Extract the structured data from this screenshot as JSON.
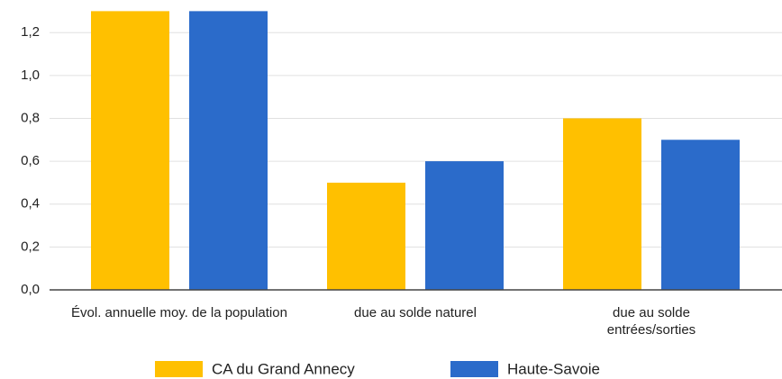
{
  "chart_data": {
    "type": "bar",
    "categories": [
      "Évol. annuelle moy. de la population",
      "due au solde naturel",
      "due au solde entrées/sorties"
    ],
    "series": [
      {
        "name": "CA du Grand Annecy",
        "color": "#ffc000",
        "values": [
          1.3,
          0.5,
          0.8
        ]
      },
      {
        "name": "Haute-Savoie",
        "color": "#2b6bca",
        "values": [
          1.3,
          0.6,
          0.7
        ]
      }
    ],
    "ylim": [
      0,
      1.31
    ],
    "yticks": [
      {
        "value": 0,
        "label": "0,0"
      },
      {
        "value": 0.2,
        "label": "0,2"
      },
      {
        "value": 0.4,
        "label": "0,4"
      },
      {
        "value": 0.6,
        "label": "0,6"
      },
      {
        "value": 0.8,
        "label": "0,8"
      },
      {
        "value": 1.0,
        "label": "1,0"
      },
      {
        "value": 1.2,
        "label": "1,2"
      }
    ],
    "grid": true,
    "legend": "bottom"
  }
}
